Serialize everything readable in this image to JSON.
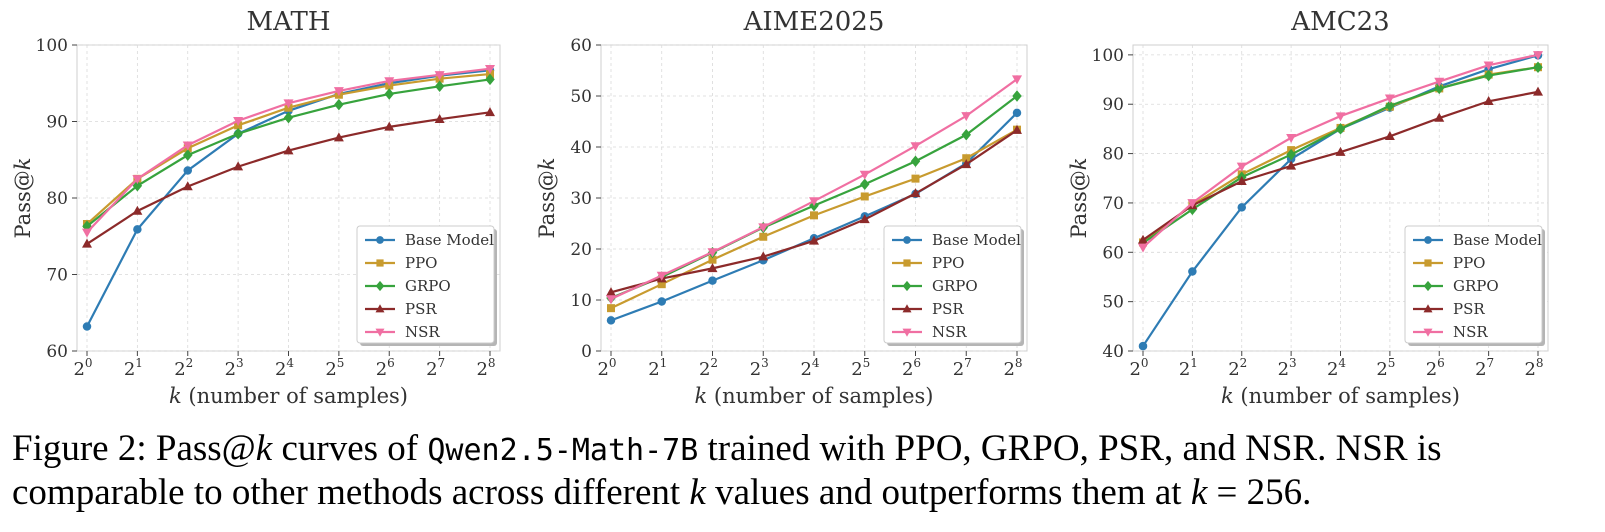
{
  "chart_data": [
    {
      "type": "line",
      "title": "MATH",
      "xlabel_var": "k",
      "xlabel_rest": " (number of samples)",
      "ylabel_pre": "Pass@",
      "ylabel_var": "k",
      "x_exponents": [
        0,
        1,
        2,
        3,
        4,
        5,
        6,
        7,
        8
      ],
      "x_base": "2",
      "ylim": [
        60,
        100
      ],
      "yticks": [
        60,
        70,
        80,
        90,
        100
      ],
      "legend_position": "lower-right",
      "series": [
        {
          "name": "Base Model",
          "color": "#2e7cb4",
          "marker": "circle",
          "values": [
            63.2,
            75.9,
            83.6,
            88.4,
            91.4,
            93.6,
            95.0,
            96.0,
            96.7
          ]
        },
        {
          "name": "PPO",
          "color": "#c89b2f",
          "marker": "square",
          "values": [
            76.6,
            82.5,
            86.5,
            89.5,
            91.8,
            93.5,
            94.7,
            95.6,
            96.2
          ]
        },
        {
          "name": "GRPO",
          "color": "#37a33d",
          "marker": "diamond",
          "values": [
            76.3,
            81.6,
            85.6,
            88.4,
            90.5,
            92.2,
            93.6,
            94.6,
            95.5
          ]
        },
        {
          "name": "PSR",
          "color": "#8c2a2a",
          "marker": "triangle-up",
          "values": [
            74.0,
            78.3,
            81.5,
            84.1,
            86.2,
            87.9,
            89.3,
            90.3,
            91.2
          ]
        },
        {
          "name": "NSR",
          "color": "#f06fa2",
          "marker": "triangle-down",
          "values": [
            75.5,
            82.5,
            86.9,
            90.1,
            92.4,
            94.0,
            95.3,
            96.1,
            96.9
          ]
        }
      ]
    },
    {
      "type": "line",
      "title": "AIME2025",
      "xlabel_var": "k",
      "xlabel_rest": " (number of samples)",
      "ylabel_pre": "Pass@",
      "ylabel_var": "k",
      "x_exponents": [
        0,
        1,
        2,
        3,
        4,
        5,
        6,
        7,
        8
      ],
      "x_base": "2",
      "ylim": [
        0,
        60
      ],
      "yticks": [
        0,
        10,
        20,
        30,
        40,
        50,
        60
      ],
      "legend_position": "lower-right",
      "series": [
        {
          "name": "Base Model",
          "color": "#2e7cb4",
          "marker": "circle",
          "values": [
            6.0,
            9.7,
            13.8,
            17.8,
            22.1,
            26.4,
            30.8,
            36.8,
            46.7
          ]
        },
        {
          "name": "PPO",
          "color": "#c89b2f",
          "marker": "square",
          "values": [
            8.4,
            13.1,
            17.9,
            22.4,
            26.6,
            30.3,
            33.8,
            37.8,
            43.4
          ]
        },
        {
          "name": "GRPO",
          "color": "#37a33d",
          "marker": "diamond",
          "values": [
            10.4,
            14.5,
            19.3,
            24.2,
            28.5,
            32.7,
            37.2,
            42.4,
            50.0
          ]
        },
        {
          "name": "PSR",
          "color": "#8c2a2a",
          "marker": "triangle-up",
          "values": [
            11.5,
            14.2,
            16.2,
            18.5,
            21.6,
            25.8,
            30.9,
            36.6,
            43.3
          ]
        },
        {
          "name": "NSR",
          "color": "#f06fa2",
          "marker": "triangle-down",
          "values": [
            10.2,
            14.8,
            19.4,
            24.3,
            29.4,
            34.6,
            40.2,
            46.1,
            53.3
          ]
        }
      ]
    },
    {
      "type": "line",
      "title": "AMC23",
      "xlabel_var": "k",
      "xlabel_rest": " (number of samples)",
      "ylabel_pre": "Pass@",
      "ylabel_var": "k",
      "x_exponents": [
        0,
        1,
        2,
        3,
        4,
        5,
        6,
        7,
        8
      ],
      "x_base": "2",
      "ylim": [
        40,
        102
      ],
      "yticks": [
        40,
        50,
        60,
        70,
        80,
        90,
        100
      ],
      "legend_position": "lower-right",
      "series": [
        {
          "name": "Base Model",
          "color": "#2e7cb4",
          "marker": "circle",
          "values": [
            41.0,
            56.1,
            69.1,
            78.9,
            85.0,
            89.3,
            93.6,
            97.1,
            99.9
          ]
        },
        {
          "name": "PPO",
          "color": "#c89b2f",
          "marker": "square",
          "values": [
            62.0,
            69.6,
            75.8,
            80.7,
            85.2,
            89.5,
            93.2,
            96.0,
            97.5
          ]
        },
        {
          "name": "GRPO",
          "color": "#37a33d",
          "marker": "diamond",
          "values": [
            61.9,
            68.7,
            75.2,
            79.8,
            85.0,
            89.7,
            93.2,
            95.8,
            97.5
          ]
        },
        {
          "name": "PSR",
          "color": "#8c2a2a",
          "marker": "triangle-up",
          "values": [
            62.5,
            69.5,
            74.4,
            77.5,
            80.3,
            83.5,
            87.2,
            90.6,
            92.5
          ]
        },
        {
          "name": "NSR",
          "color": "#f06fa2",
          "marker": "triangle-down",
          "values": [
            61.0,
            70.0,
            77.4,
            83.2,
            87.6,
            91.2,
            94.6,
            97.9,
            100.0
          ]
        }
      ]
    }
  ],
  "caption": {
    "prefix": "Figure 2: Pass@",
    "k1": "k",
    "after_k": " curves of ",
    "model": "Qwen2.5-Math-7B",
    "line1_rest": " trained with PPO, GRPO, PSR, and NSR. NSR is",
    "line2_start": "comparable to other methods across different ",
    "k2": "k",
    "line2_mid": " values and outperforms them at ",
    "k3": "k",
    "line2_end": " = 256."
  }
}
